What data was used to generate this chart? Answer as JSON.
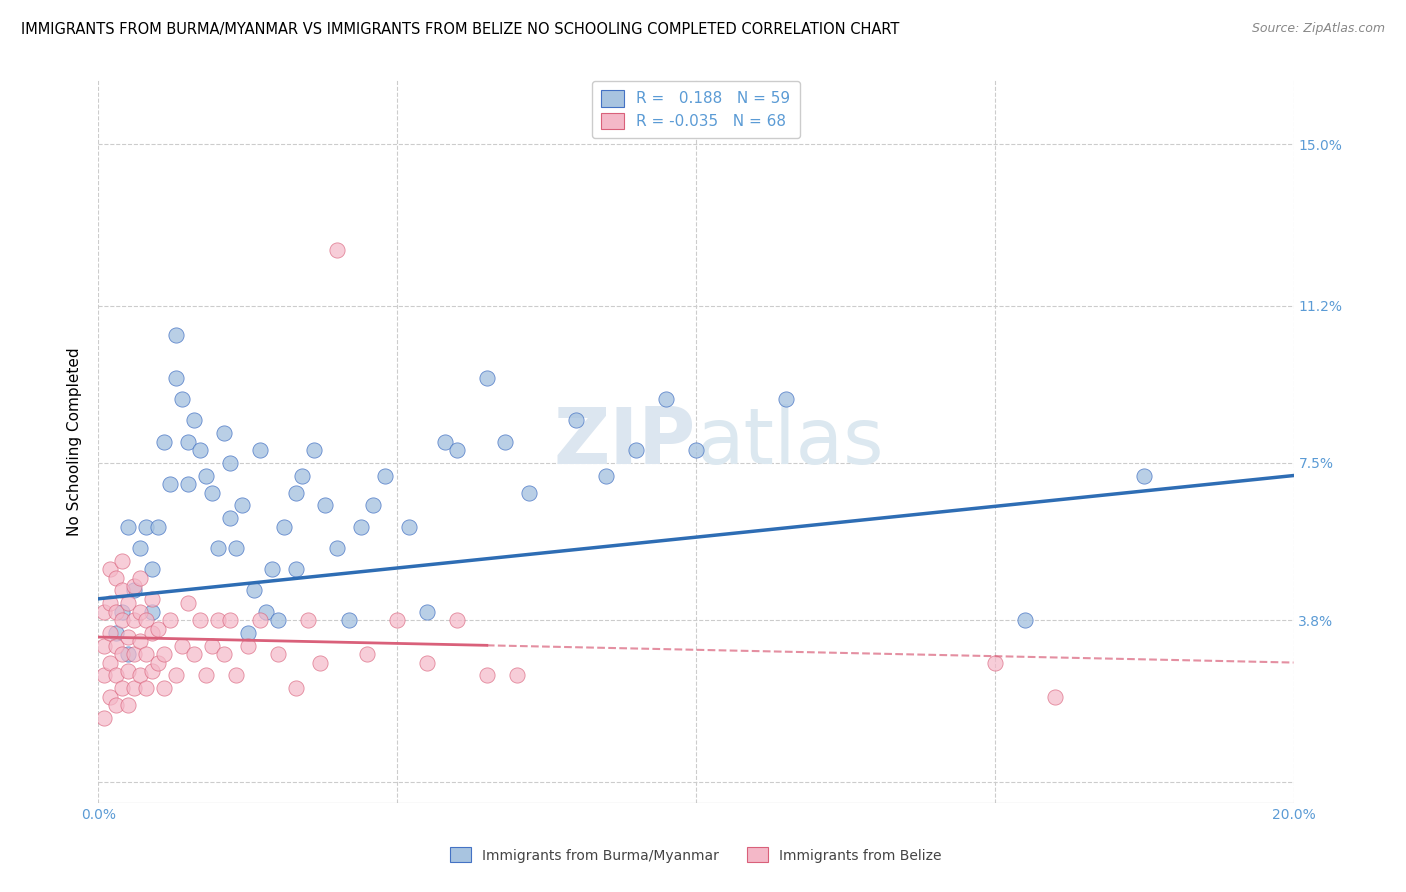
{
  "title": "IMMIGRANTS FROM BURMA/MYANMAR VS IMMIGRANTS FROM BELIZE NO SCHOOLING COMPLETED CORRELATION CHART",
  "source": "Source: ZipAtlas.com",
  "ylabel": "No Schooling Completed",
  "xlabel_blue": "Immigrants from Burma/Myanmar",
  "xlabel_pink": "Immigrants from Belize",
  "r_blue": 0.188,
  "n_blue": 59,
  "r_pink": -0.035,
  "n_pink": 68,
  "xlim": [
    0.0,
    0.2
  ],
  "ylim": [
    -0.005,
    0.165
  ],
  "yticks": [
    0.0,
    0.038,
    0.075,
    0.112,
    0.15
  ],
  "ytick_labels": [
    "",
    "3.8%",
    "7.5%",
    "11.2%",
    "15.0%"
  ],
  "xticks": [
    0.0,
    0.05,
    0.1,
    0.15,
    0.2
  ],
  "xtick_labels": [
    "0.0%",
    "",
    "",
    "",
    "20.0%"
  ],
  "color_blue": "#a8c4e0",
  "color_blue_line": "#4472c4",
  "color_pink": "#f4b8c8",
  "color_pink_line": "#d9607a",
  "color_trendline_blue": "#2e6db4",
  "color_trendline_pink": "#d9607a",
  "color_axis_labels": "#5b9bd5",
  "color_grid": "#cccccc",
  "watermark_color": "#dce6f0",
  "blue_x": [
    0.003,
    0.004,
    0.005,
    0.005,
    0.006,
    0.007,
    0.008,
    0.009,
    0.009,
    0.01,
    0.011,
    0.012,
    0.013,
    0.013,
    0.014,
    0.015,
    0.015,
    0.016,
    0.017,
    0.018,
    0.019,
    0.02,
    0.021,
    0.022,
    0.022,
    0.023,
    0.024,
    0.025,
    0.026,
    0.027,
    0.028,
    0.029,
    0.03,
    0.031,
    0.033,
    0.033,
    0.034,
    0.036,
    0.038,
    0.04,
    0.042,
    0.044,
    0.046,
    0.048,
    0.052,
    0.055,
    0.058,
    0.06,
    0.065,
    0.068,
    0.072,
    0.08,
    0.085,
    0.09,
    0.095,
    0.1,
    0.115,
    0.155,
    0.175
  ],
  "blue_y": [
    0.035,
    0.04,
    0.03,
    0.06,
    0.045,
    0.055,
    0.06,
    0.05,
    0.04,
    0.06,
    0.08,
    0.07,
    0.095,
    0.105,
    0.09,
    0.07,
    0.08,
    0.085,
    0.078,
    0.072,
    0.068,
    0.055,
    0.082,
    0.062,
    0.075,
    0.055,
    0.065,
    0.035,
    0.045,
    0.078,
    0.04,
    0.05,
    0.038,
    0.06,
    0.05,
    0.068,
    0.072,
    0.078,
    0.065,
    0.055,
    0.038,
    0.06,
    0.065,
    0.072,
    0.06,
    0.04,
    0.08,
    0.078,
    0.095,
    0.08,
    0.068,
    0.085,
    0.072,
    0.078,
    0.09,
    0.078,
    0.09,
    0.038,
    0.072
  ],
  "pink_x": [
    0.001,
    0.001,
    0.001,
    0.001,
    0.002,
    0.002,
    0.002,
    0.002,
    0.002,
    0.003,
    0.003,
    0.003,
    0.003,
    0.003,
    0.004,
    0.004,
    0.004,
    0.004,
    0.004,
    0.005,
    0.005,
    0.005,
    0.005,
    0.006,
    0.006,
    0.006,
    0.006,
    0.007,
    0.007,
    0.007,
    0.007,
    0.008,
    0.008,
    0.008,
    0.009,
    0.009,
    0.009,
    0.01,
    0.01,
    0.011,
    0.011,
    0.012,
    0.013,
    0.014,
    0.015,
    0.016,
    0.017,
    0.018,
    0.019,
    0.02,
    0.021,
    0.022,
    0.023,
    0.025,
    0.027,
    0.03,
    0.033,
    0.035,
    0.037,
    0.04,
    0.045,
    0.05,
    0.055,
    0.06,
    0.065,
    0.07,
    0.15,
    0.16
  ],
  "pink_y": [
    0.015,
    0.025,
    0.032,
    0.04,
    0.02,
    0.028,
    0.035,
    0.042,
    0.05,
    0.018,
    0.025,
    0.032,
    0.04,
    0.048,
    0.022,
    0.03,
    0.038,
    0.045,
    0.052,
    0.018,
    0.026,
    0.034,
    0.042,
    0.022,
    0.03,
    0.038,
    0.046,
    0.025,
    0.033,
    0.04,
    0.048,
    0.022,
    0.03,
    0.038,
    0.026,
    0.035,
    0.043,
    0.028,
    0.036,
    0.022,
    0.03,
    0.038,
    0.025,
    0.032,
    0.042,
    0.03,
    0.038,
    0.025,
    0.032,
    0.038,
    0.03,
    0.038,
    0.025,
    0.032,
    0.038,
    0.03,
    0.022,
    0.038,
    0.028,
    0.125,
    0.03,
    0.038,
    0.028,
    0.038,
    0.025,
    0.025,
    0.028,
    0.02
  ],
  "trendline_blue_x0": 0.0,
  "trendline_blue_y0": 0.043,
  "trendline_blue_x1": 0.2,
  "trendline_blue_y1": 0.072,
  "trendline_pink_x0": 0.0,
  "trendline_pink_y0": 0.034,
  "trendline_pink_x1": 0.2,
  "trendline_pink_y1": 0.028
}
